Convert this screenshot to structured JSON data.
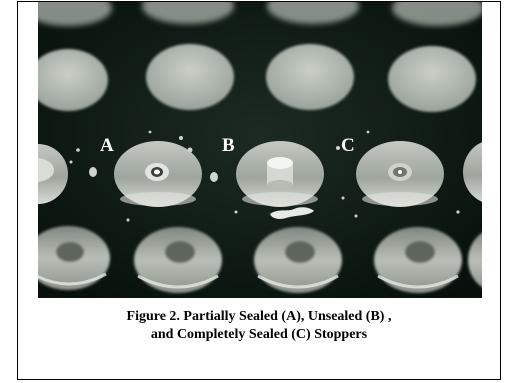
{
  "photo": {
    "labels": {
      "a": "A",
      "b": "B",
      "c": "C"
    }
  },
  "caption": {
    "line1": "Figure 2. Partially Sealed (A), Unsealed (B) ,",
    "line2": "and Completely Sealed (C) Stoppers"
  }
}
